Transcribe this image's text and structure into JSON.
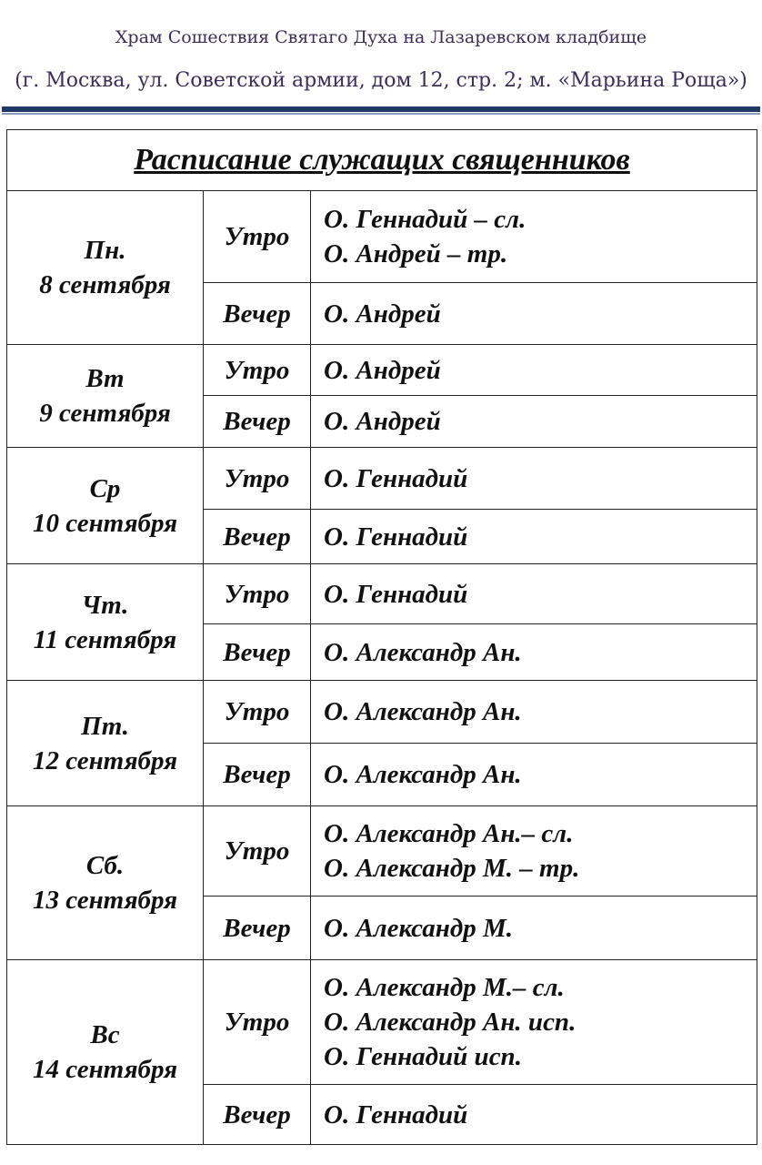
{
  "header": {
    "line1": "Храм Сошествия Святаго Духа на Лазаревском кладбище",
    "line2": "(г. Москва, ул. Советской армии, дом 12, стр. 2; м. «Марьина Роща»)"
  },
  "table": {
    "title": "Расписание служащих священников",
    "days": [
      {
        "day": "Пн.",
        "date": "8 сентября",
        "morning": [
          "О. Геннадий – сл.",
          "О. Андрей – тр."
        ],
        "evening": [
          "О. Андрей"
        ]
      },
      {
        "day": "Вт",
        "date": "9 сентября",
        "morning": [
          "О. Андрей"
        ],
        "evening": [
          "О. Андрей"
        ]
      },
      {
        "day": "Ср",
        "date": "10 сентября",
        "morning": [
          "О. Геннадий"
        ],
        "evening": [
          "О. Геннадий"
        ]
      },
      {
        "day": "Чт.",
        "date": "11 сентября",
        "morning": [
          "О. Геннадий"
        ],
        "evening": [
          "О. Александр Ан."
        ]
      },
      {
        "day": "Пт.",
        "date": "12 сентября",
        "morning": [
          "О. Александр Ан."
        ],
        "evening": [
          "О. Александр Ан."
        ]
      },
      {
        "day": "Сб.",
        "date": "13 сентября",
        "morning": [
          "О. Александр Ан.– сл.",
          "О. Александр М. – тр."
        ],
        "evening": [
          "О. Александр М."
        ]
      },
      {
        "day": "Вс",
        "date": "14 сентября",
        "morning": [
          "О. Александр М.– сл.",
          "О. Александр Ан. исп.",
          "О. Геннадий исп."
        ],
        "evening": [
          "О. Геннадий"
        ]
      }
    ],
    "morning_label": "Утро",
    "evening_label": "Вечер"
  },
  "colors": {
    "header_text": "#3b2d5a",
    "rule": "#1f3866"
  }
}
